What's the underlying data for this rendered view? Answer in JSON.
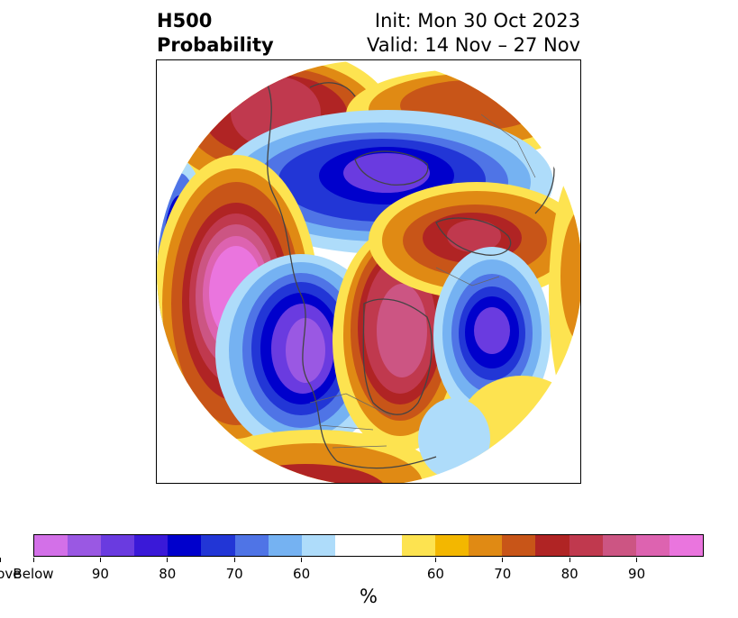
{
  "header": {
    "title_line1": "H500",
    "title_line2": "Probability",
    "init_text": "Init: Mon 30 Oct 2023",
    "valid_text": "Valid: 14 Nov – 27 Nov"
  },
  "colorbar": {
    "colors": [
      "#d370e8",
      "#9a58e3",
      "#6a3be0",
      "#3a19d8",
      "#0000cc",
      "#2236d6",
      "#4f74e6",
      "#75b2f2",
      "#aedcfa",
      "#ffffff",
      "#fde350",
      "#f3b700",
      "#e08a14",
      "#c85518",
      "#b02424",
      "#c0394e",
      "#cc5583",
      "#dd63b0",
      "#ea75de"
    ],
    "weights": [
      1,
      1,
      1,
      1,
      1,
      1,
      1,
      1,
      1,
      2,
      1,
      1,
      1,
      1,
      1,
      1,
      1,
      1,
      1
    ],
    "tick_labels": [
      "Below",
      "90",
      "80",
      "70",
      "60",
      "60",
      "70",
      "80",
      "90",
      "Above"
    ],
    "unit_label": "%"
  }
}
